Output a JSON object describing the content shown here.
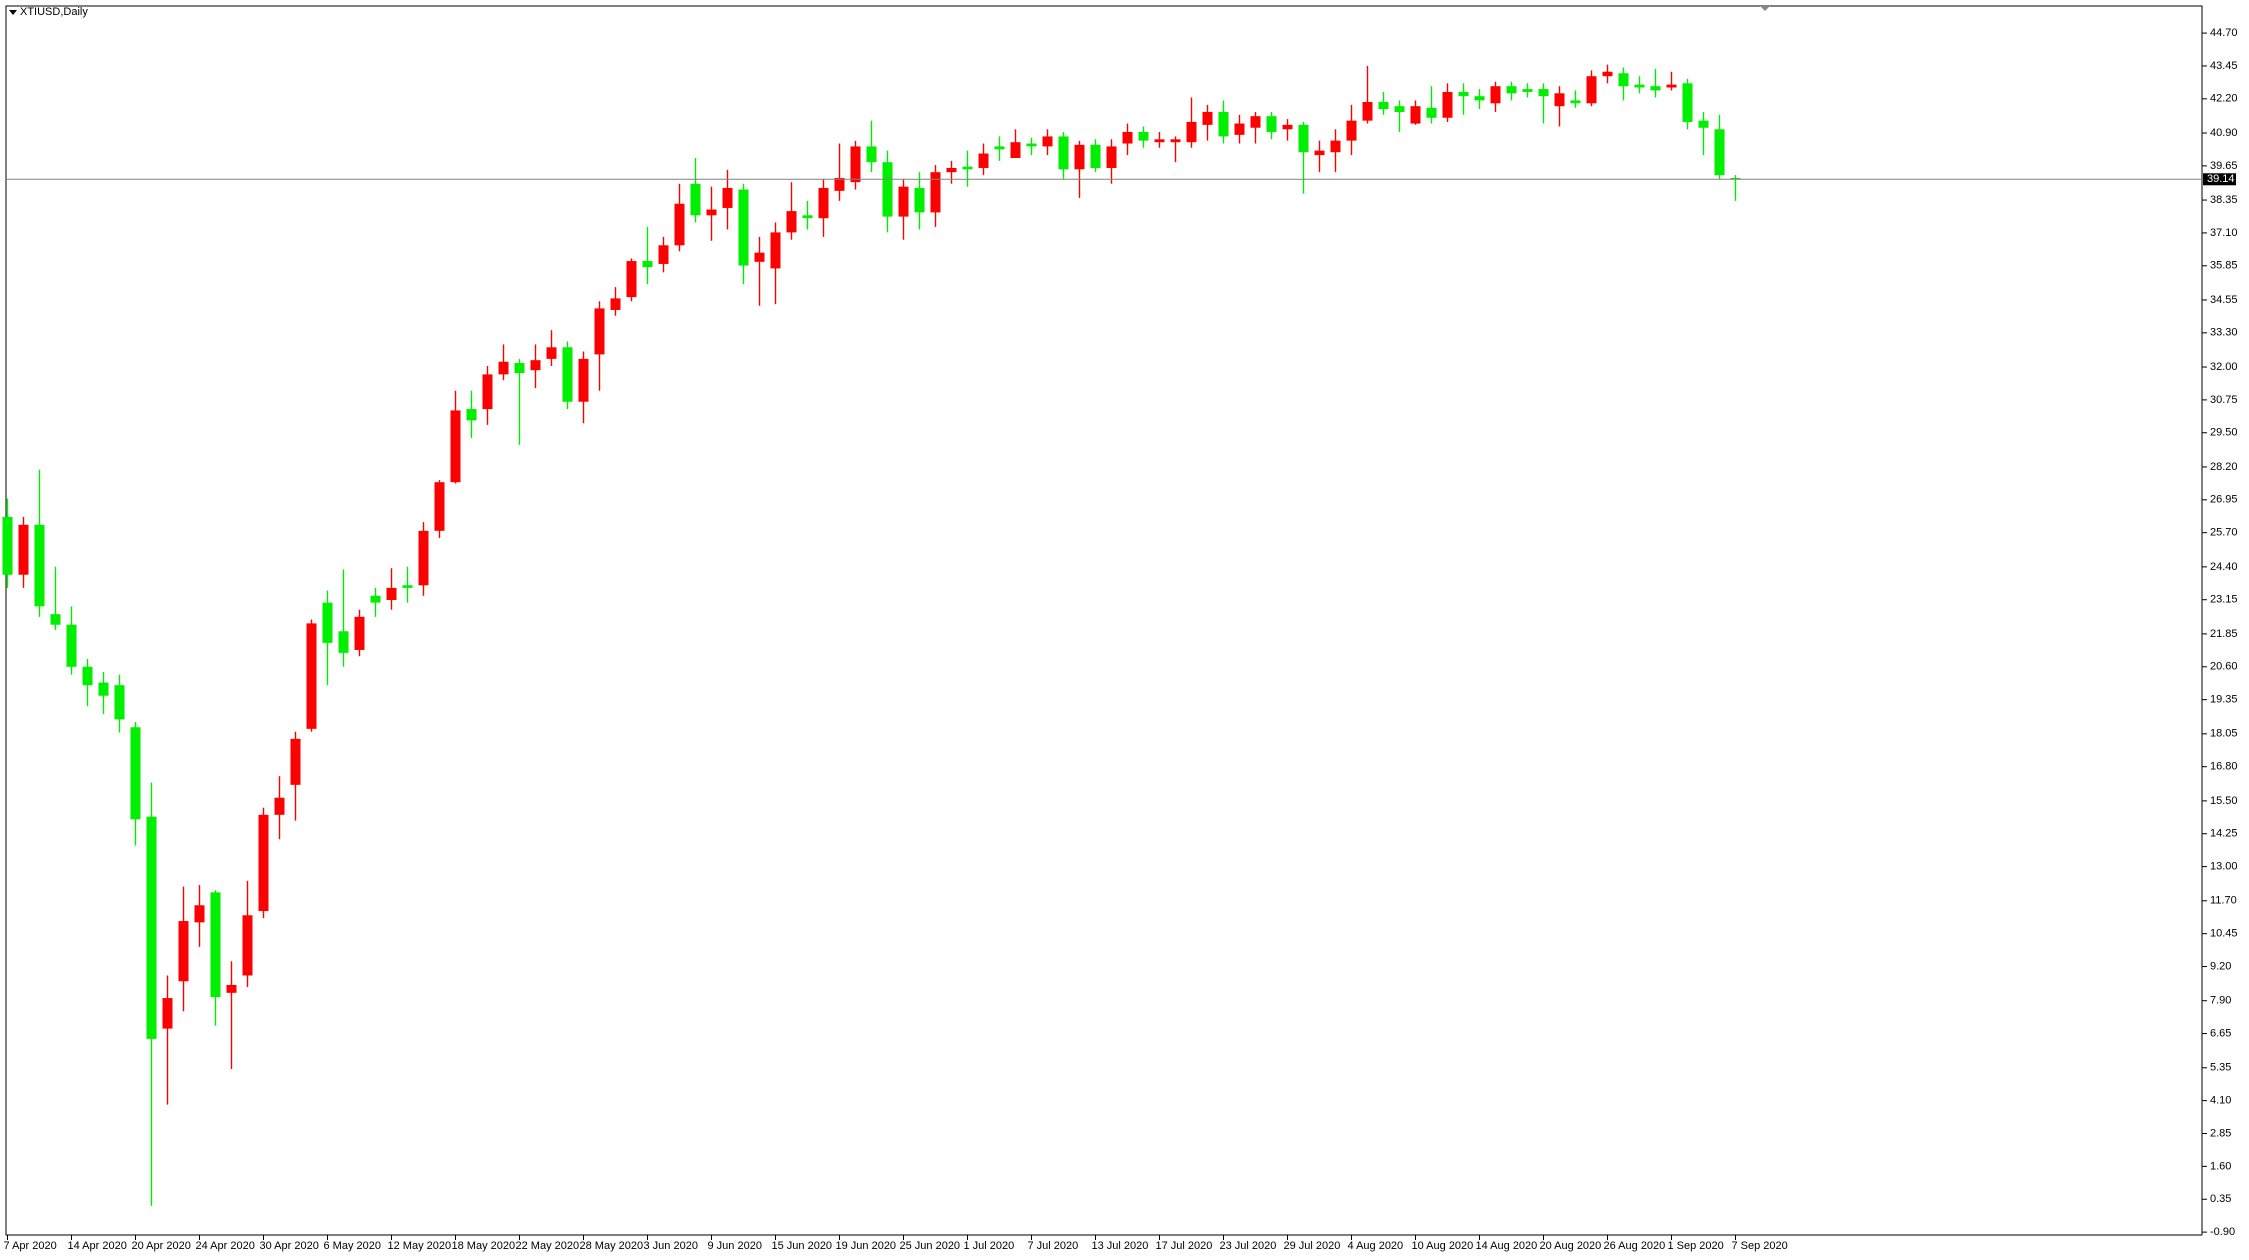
{
  "chart_data": {
    "type": "candlestick",
    "title": "XTIUSD,Daily",
    "categories": [
      "7 Apr 2020",
      null,
      null,
      null,
      "14 Apr 2020",
      null,
      null,
      null,
      "20 Apr 2020",
      null,
      null,
      null,
      "24 Apr 2020",
      null,
      null,
      null,
      "30 Apr 2020",
      null,
      null,
      null,
      "6 May 2020",
      null,
      null,
      null,
      "12 May 2020",
      null,
      null,
      null,
      "18 May 2020",
      null,
      null,
      null,
      "22 May 2020",
      null,
      null,
      null,
      "28 May 2020",
      null,
      null,
      null,
      "3 Jun 2020",
      null,
      null,
      null,
      "9 Jun 2020",
      null,
      null,
      null,
      "15 Jun 2020",
      null,
      null,
      null,
      "19 Jun 2020",
      null,
      null,
      null,
      "25 Jun 2020",
      null,
      null,
      null,
      "1 Jul 2020",
      null,
      null,
      null,
      "7 Jul 2020",
      null,
      null,
      null,
      "13 Jul 2020",
      null,
      null,
      null,
      "17 Jul 2020",
      null,
      null,
      null,
      "23 Jul 2020",
      null,
      null,
      null,
      "29 Jul 2020",
      null,
      null,
      null,
      "4 Aug 2020",
      null,
      null,
      null,
      "10 Aug 2020",
      null,
      null,
      null,
      "14 Aug 2020",
      null,
      null,
      null,
      "20 Aug 2020",
      null,
      null,
      null,
      "26 Aug 2020",
      null,
      null,
      null,
      "1 Sep 2020",
      null,
      null,
      null,
      "7 Sep 2020"
    ],
    "open": [
      26.3,
      24.1,
      26.0,
      22.6,
      22.2,
      20.6,
      20.0,
      19.9,
      18.3,
      14.9,
      6.84,
      8.64,
      10.88,
      12.02,
      8.2,
      8.86,
      11.31,
      14.97,
      16.11,
      18.24,
      23.04,
      21.95,
      21.24,
      23.3,
      23.14,
      23.7,
      23.7,
      25.77,
      27.62,
      30.4,
      30.4,
      31.72,
      32.15,
      31.88,
      32.31,
      32.75,
      30.68,
      32.48,
      34.17,
      34.66,
      36.03,
      35.92,
      36.63,
      38.97,
      37.77,
      38.05,
      38.75,
      36.0,
      35.75,
      37.12,
      37.77,
      37.66,
      38.7,
      39.03,
      40.39,
      39.79,
      37.72,
      38.81,
      37.88,
      39.41,
      39.62,
      39.57,
      40.39,
      39.95,
      40.5,
      40.39,
      40.77,
      39.52,
      40.45,
      39.57,
      40.5,
      40.94,
      40.55,
      40.55,
      40.55,
      41.21,
      41.7,
      40.83,
      41.1,
      41.54,
      41.04,
      41.21,
      40.06,
      40.17,
      40.61,
      41.37,
      42.08,
      41.92,
      41.26,
      41.86,
      41.48,
      42.46,
      42.3,
      42.03,
      42.68,
      42.57,
      42.57,
      41.92,
      42.14,
      42.03,
      43.06,
      43.17,
      42.74,
      42.68,
      42.63,
      42.79,
      41.37,
      41.04,
      39.19
    ],
    "high": [
      27.0,
      26.3,
      28.1,
      24.4,
      22.9,
      20.9,
      20.4,
      20.3,
      18.5,
      16.2,
      8.86,
      12.24,
      12.3,
      12.1,
      9.4,
      12.46,
      15.24,
      16.44,
      18.13,
      22.4,
      23.5,
      24.3,
      22.77,
      23.6,
      24.35,
      24.4,
      26.1,
      27.7,
      31.1,
      31.1,
      32.04,
      32.86,
      32.3,
      32.86,
      33.4,
      32.97,
      32.59,
      34.5,
      35.04,
      36.13,
      37.33,
      36.95,
      38.97,
      39.95,
      38.86,
      39.5,
      38.97,
      36.95,
      37.5,
      39.03,
      38.32,
      39.14,
      40.5,
      40.6,
      41.37,
      40.23,
      39.14,
      39.41,
      39.68,
      39.84,
      40.23,
      40.5,
      40.77,
      41.04,
      40.72,
      41.04,
      40.94,
      40.6,
      40.66,
      40.66,
      41.26,
      41.15,
      40.94,
      40.77,
      42.25,
      41.97,
      42.14,
      41.59,
      41.7,
      41.7,
      41.43,
      41.32,
      40.61,
      41.04,
      41.97,
      43.45,
      42.46,
      42.14,
      42.14,
      42.68,
      42.79,
      42.79,
      42.57,
      42.85,
      42.85,
      42.79,
      42.79,
      42.68,
      42.52,
      43.28,
      43.5,
      43.39,
      43.06,
      43.34,
      43.23,
      42.96,
      41.7,
      41.59,
      39.3
    ],
    "low": [
      23.6,
      23.6,
      22.5,
      22.0,
      20.3,
      19.1,
      18.8,
      18.1,
      13.8,
      0.1,
      3.95,
      7.5,
      9.95,
      6.95,
      5.3,
      8.42,
      11.04,
      14.04,
      14.75,
      18.13,
      19.9,
      20.6,
      21.0,
      22.5,
      22.77,
      23.04,
      23.3,
      25.5,
      27.57,
      29.3,
      29.8,
      31.5,
      29.04,
      31.2,
      32.04,
      30.4,
      29.86,
      31.1,
      33.95,
      34.5,
      35.15,
      35.6,
      36.4,
      37.5,
      36.8,
      37.23,
      35.15,
      34.33,
      34.39,
      36.84,
      37.23,
      36.95,
      38.32,
      38.75,
      39.41,
      37.12,
      36.84,
      37.23,
      37.33,
      38.97,
      38.86,
      39.3,
      39.84,
      39.95,
      40.06,
      40.06,
      39.14,
      38.43,
      39.41,
      38.97,
      40.06,
      40.34,
      40.34,
      39.79,
      40.34,
      40.61,
      40.5,
      40.5,
      40.5,
      40.66,
      40.61,
      38.59,
      39.41,
      39.41,
      40.06,
      41.26,
      41.59,
      40.94,
      41.21,
      41.26,
      41.32,
      41.59,
      41.81,
      41.7,
      42.14,
      42.25,
      41.26,
      41.15,
      41.86,
      41.92,
      42.79,
      42.14,
      42.41,
      42.25,
      42.52,
      41.04,
      40.06,
      39.14,
      38.32
    ],
    "close": [
      24.1,
      26.0,
      22.9,
      22.2,
      20.6,
      19.9,
      19.5,
      18.6,
      14.8,
      6.45,
      8.0,
      10.93,
      11.53,
      8.04,
      8.5,
      11.15,
      14.97,
      15.62,
      17.86,
      22.25,
      21.51,
      21.13,
      22.5,
      23.04,
      23.6,
      23.6,
      25.77,
      27.62,
      30.35,
      29.97,
      31.72,
      32.2,
      31.77,
      32.26,
      32.75,
      30.68,
      32.31,
      34.23,
      34.61,
      36.03,
      35.8,
      36.63,
      38.21,
      37.77,
      37.99,
      38.81,
      35.86,
      36.35,
      37.12,
      37.93,
      37.66,
      38.81,
      39.19,
      40.39,
      39.79,
      37.72,
      38.86,
      37.88,
      39.41,
      39.57,
      39.52,
      40.12,
      40.28,
      40.55,
      40.39,
      40.77,
      39.52,
      40.45,
      39.57,
      40.39,
      40.94,
      40.61,
      40.66,
      40.66,
      41.32,
      41.7,
      40.77,
      41.26,
      41.54,
      40.94,
      41.21,
      40.17,
      40.23,
      40.61,
      41.37,
      42.08,
      41.81,
      41.7,
      41.92,
      41.48,
      42.46,
      42.3,
      42.14,
      42.68,
      42.41,
      42.46,
      42.3,
      42.41,
      42.03,
      43.06,
      43.23,
      42.68,
      42.63,
      42.52,
      42.74,
      41.32,
      41.1,
      39.3,
      39.14
    ],
    "up_color": "#ff0000",
    "down_color": "#00ee00",
    "last_price": 39.14,
    "ylim": [
      -1.01,
      45.73
    ],
    "yticks": [
      {
        "value": 44.7,
        "label": "44.70"
      },
      43.45,
      {
        "value": 42.2,
        "label": "42.20"
      },
      {
        "value": 40.9,
        "label": "40.90"
      },
      39.65,
      38.35,
      {
        "value": 37.1,
        "label": "37.10"
      },
      35.85,
      34.55,
      {
        "value": 33.3,
        "label": "33.30"
      },
      {
        "value": 32,
        "label": "32.00"
      },
      30.75,
      {
        "value": 29.5,
        "label": "29.50"
      },
      {
        "value": 28.2,
        "label": "28.20"
      },
      26.95,
      {
        "value": 25.7,
        "label": "25.70"
      },
      {
        "value": 24.4,
        "label": "24.40"
      },
      23.15,
      21.85,
      {
        "value": 20.6,
        "label": "20.60"
      },
      19.35,
      18.05,
      {
        "value": 16.8,
        "label": "16.80"
      },
      {
        "value": 15.5,
        "label": "15.50"
      },
      14.25,
      {
        "value": 13,
        "label": "13.00"
      },
      {
        "value": 11.7,
        "label": "11.70"
      },
      10.45,
      {
        "value": 9.2,
        "label": "9.20"
      },
      {
        "value": 7.9,
        "label": "7.90"
      },
      6.65,
      5.35,
      {
        "value": 4.1,
        "label": "4.10"
      },
      2.85,
      {
        "value": 1.6,
        "label": "1.60"
      },
      0.35,
      {
        "value": -0.9,
        "label": "-0.90"
      }
    ],
    "grid": false
  }
}
